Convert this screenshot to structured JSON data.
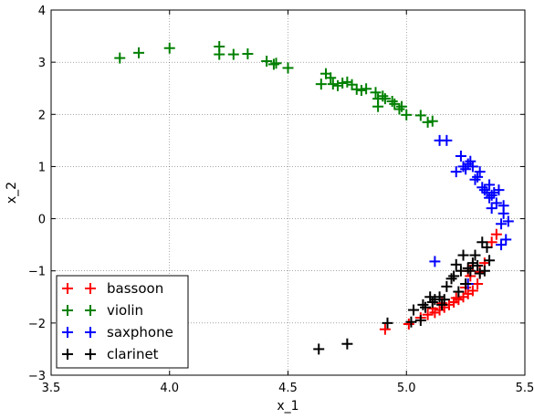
{
  "chart_data": {
    "type": "scatter",
    "xlabel": "x_1",
    "ylabel": "x_2",
    "xlim": [
      3.5,
      5.5
    ],
    "ylim": [
      -3,
      4
    ],
    "xticks": [
      "3.5",
      "4.0",
      "4.5",
      "5.0",
      "5.5"
    ],
    "yticks": [
      "−3",
      "−2",
      "−1",
      "0",
      "1",
      "2",
      "3",
      "4"
    ],
    "grid": true,
    "marker": "plus",
    "legend_position": "lower-left",
    "series": [
      {
        "name": "bassoon",
        "color": "#ff0000",
        "points": [
          [
            4.91,
            -2.12
          ],
          [
            5.01,
            -2.02
          ],
          [
            5.06,
            -1.9
          ],
          [
            5.09,
            -1.84
          ],
          [
            5.12,
            -1.8
          ],
          [
            5.14,
            -1.75
          ],
          [
            5.16,
            -1.7
          ],
          [
            5.18,
            -1.65
          ],
          [
            5.2,
            -1.6
          ],
          [
            5.22,
            -1.55
          ],
          [
            5.24,
            -1.5
          ],
          [
            5.26,
            -1.44
          ],
          [
            5.28,
            -1.38
          ],
          [
            5.3,
            -1.25
          ],
          [
            5.27,
            -1.1
          ],
          [
            5.26,
            -1.0
          ],
          [
            5.28,
            -0.9
          ],
          [
            5.33,
            -0.85
          ],
          [
            5.36,
            -0.45
          ],
          [
            5.38,
            -0.3
          ],
          [
            5.21,
            -1.52
          ],
          [
            5.15,
            -1.62
          ],
          [
            5.11,
            -1.72
          ],
          [
            5.25,
            -1.32
          ],
          [
            5.31,
            -1.02
          ]
        ]
      },
      {
        "name": "violin",
        "color": "#008000",
        "points": [
          [
            3.79,
            3.08
          ],
          [
            3.87,
            3.18
          ],
          [
            4.0,
            3.27
          ],
          [
            4.21,
            3.3
          ],
          [
            4.21,
            3.15
          ],
          [
            4.27,
            3.15
          ],
          [
            4.33,
            3.16
          ],
          [
            4.41,
            3.02
          ],
          [
            4.44,
            2.96
          ],
          [
            4.45,
            2.98
          ],
          [
            4.5,
            2.89
          ],
          [
            4.64,
            2.58
          ],
          [
            4.66,
            2.78
          ],
          [
            4.68,
            2.7
          ],
          [
            4.69,
            2.58
          ],
          [
            4.71,
            2.55
          ],
          [
            4.73,
            2.6
          ],
          [
            4.75,
            2.62
          ],
          [
            4.77,
            2.57
          ],
          [
            4.79,
            2.48
          ],
          [
            4.81,
            2.46
          ],
          [
            4.83,
            2.49
          ],
          [
            4.87,
            2.42
          ],
          [
            4.88,
            2.3
          ],
          [
            4.88,
            2.15
          ],
          [
            4.9,
            2.35
          ],
          [
            4.91,
            2.3
          ],
          [
            4.94,
            2.25
          ],
          [
            4.95,
            2.2
          ],
          [
            4.97,
            2.1
          ],
          [
            4.98,
            2.15
          ],
          [
            5.0,
            1.99
          ],
          [
            5.06,
            1.98
          ],
          [
            5.09,
            1.85
          ],
          [
            5.11,
            1.87
          ]
        ]
      },
      {
        "name": "saxphone",
        "color": "#0000ff",
        "points": [
          [
            5.14,
            1.5
          ],
          [
            5.17,
            1.5
          ],
          [
            5.21,
            0.9
          ],
          [
            5.23,
            1.2
          ],
          [
            5.24,
            1.0
          ],
          [
            5.25,
            0.95
          ],
          [
            5.26,
            1.05
          ],
          [
            5.27,
            1.1
          ],
          [
            5.28,
            1.0
          ],
          [
            5.29,
            0.75
          ],
          [
            5.3,
            0.8
          ],
          [
            5.31,
            0.9
          ],
          [
            5.32,
            0.6
          ],
          [
            5.33,
            0.55
          ],
          [
            5.34,
            0.5
          ],
          [
            5.35,
            0.65
          ],
          [
            5.35,
            0.4
          ],
          [
            5.36,
            0.45
          ],
          [
            5.36,
            0.2
          ],
          [
            5.37,
            0.5
          ],
          [
            5.38,
            0.3
          ],
          [
            5.39,
            0.55
          ],
          [
            5.4,
            -0.1
          ],
          [
            5.41,
            0.25
          ],
          [
            5.41,
            0.1
          ],
          [
            5.42,
            -0.4
          ],
          [
            5.43,
            -0.05
          ],
          [
            5.4,
            -0.5
          ],
          [
            5.12,
            -0.82
          ],
          [
            5.26,
            -1.25
          ]
        ]
      },
      {
        "name": "clarinet",
        "color": "#000000",
        "points": [
          [
            4.63,
            -2.5
          ],
          [
            4.75,
            -2.4
          ],
          [
            4.92,
            -2.0
          ],
          [
            5.02,
            -1.98
          ],
          [
            5.03,
            -1.75
          ],
          [
            5.06,
            -1.95
          ],
          [
            5.07,
            -1.65
          ],
          [
            5.08,
            -1.7
          ],
          [
            5.1,
            -1.5
          ],
          [
            5.11,
            -1.6
          ],
          [
            5.12,
            -1.55
          ],
          [
            5.14,
            -1.5
          ],
          [
            5.15,
            -1.65
          ],
          [
            5.16,
            -1.55
          ],
          [
            5.17,
            -1.3
          ],
          [
            5.19,
            -1.15
          ],
          [
            5.2,
            -1.1
          ],
          [
            5.21,
            -0.88
          ],
          [
            5.22,
            -1.4
          ],
          [
            5.23,
            -1.0
          ],
          [
            5.24,
            -0.7
          ],
          [
            5.25,
            -1.25
          ],
          [
            5.26,
            -0.95
          ],
          [
            5.27,
            -1.0
          ],
          [
            5.28,
            -0.85
          ],
          [
            5.29,
            -0.7
          ],
          [
            5.3,
            -0.9
          ],
          [
            5.31,
            -1.05
          ],
          [
            5.32,
            -0.45
          ],
          [
            5.33,
            -1.0
          ],
          [
            5.34,
            -0.55
          ],
          [
            5.35,
            -0.8
          ]
        ]
      }
    ]
  }
}
